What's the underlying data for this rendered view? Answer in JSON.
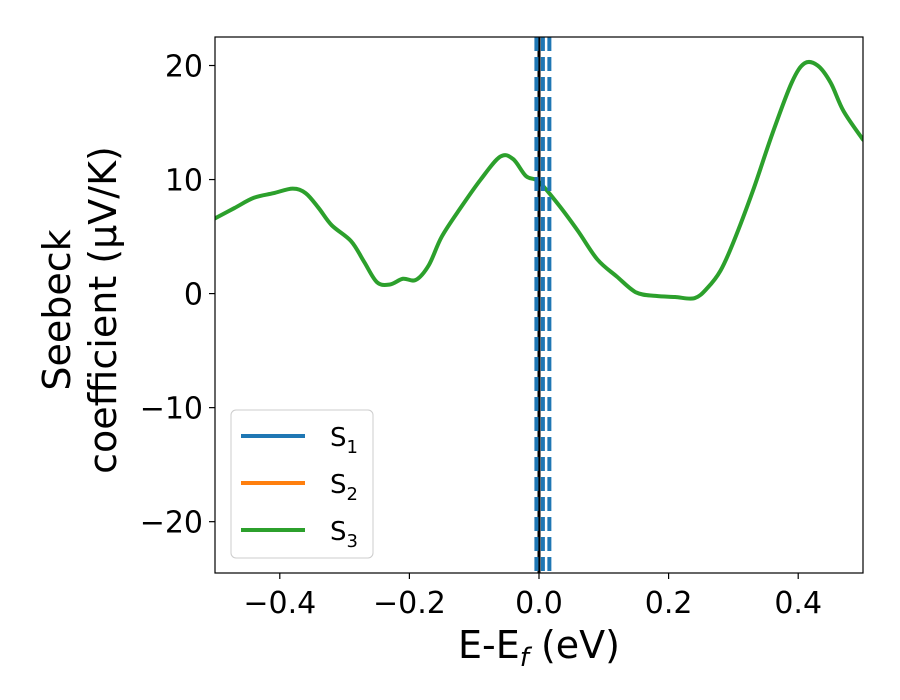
{
  "chart_data": {
    "type": "line",
    "xlabel": {
      "main": "E-E",
      "sub": "f",
      "suffix": " (eV)"
    },
    "ylabel": {
      "line1": "Seebeck",
      "line2": "coefficient  (μV/K)"
    },
    "xlim": [
      -0.5,
      0.5
    ],
    "ylim": [
      -24.5,
      22.5
    ],
    "xticks": [
      -0.4,
      -0.2,
      0.0,
      0.2,
      0.4
    ],
    "xtick_labels": [
      "−0.4",
      "−0.2",
      "0.0",
      "0.2",
      "0.4"
    ],
    "yticks": [
      -20,
      -10,
      0,
      10,
      20
    ],
    "ytick_labels": [
      "−20",
      "−10",
      "0",
      "10",
      "20"
    ],
    "grid": false,
    "legend": {
      "placement": "lower-left",
      "entries": [
        {
          "base": "S",
          "sub": "1",
          "color": "#1f77b4"
        },
        {
          "base": "S",
          "sub": "2",
          "color": "#ff7f0e"
        },
        {
          "base": "S",
          "sub": "3",
          "color": "#2ca02c"
        }
      ]
    },
    "series": [
      {
        "name": "S1",
        "color": "#1f77b4",
        "x": [],
        "y": []
      },
      {
        "name": "S2",
        "color": "#ff7f0e",
        "x": [],
        "y": []
      },
      {
        "name": "S3",
        "color": "#2ca02c",
        "x": [
          -0.5,
          -0.47,
          -0.44,
          -0.41,
          -0.38,
          -0.36,
          -0.34,
          -0.32,
          -0.29,
          -0.27,
          -0.25,
          -0.23,
          -0.21,
          -0.19,
          -0.17,
          -0.15,
          -0.12,
          -0.09,
          -0.06,
          -0.04,
          -0.02,
          0.0,
          0.03,
          0.06,
          0.09,
          0.12,
          0.15,
          0.18,
          0.21,
          0.24,
          0.26,
          0.28,
          0.3,
          0.33,
          0.36,
          0.39,
          0.41,
          0.43,
          0.45,
          0.47,
          0.5
        ],
        "y": [
          6.6,
          7.5,
          8.4,
          8.8,
          9.2,
          8.8,
          7.5,
          6.0,
          4.6,
          2.8,
          1.0,
          0.8,
          1.3,
          1.2,
          2.5,
          5.0,
          7.6,
          10.0,
          12.0,
          11.8,
          10.3,
          9.8,
          7.8,
          5.5,
          3.0,
          1.5,
          0.1,
          -0.2,
          -0.3,
          -0.4,
          0.5,
          2.0,
          4.5,
          9.0,
          14.0,
          18.5,
          20.2,
          20.0,
          18.5,
          16.0,
          13.5
        ]
      }
    ],
    "vertical_lines": [
      {
        "x": 0.0,
        "color": "#000000",
        "style": "solid"
      },
      {
        "x": -0.004,
        "color": "#1f77b4",
        "style": "dashed"
      },
      {
        "x": 0.006,
        "color": "#1f77b4",
        "style": "dashed"
      },
      {
        "x": 0.016,
        "color": "#1f77b4",
        "style": "dashed"
      }
    ]
  }
}
